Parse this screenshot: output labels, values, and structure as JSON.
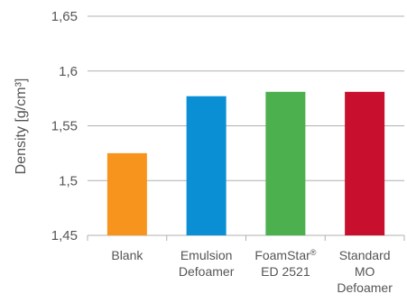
{
  "chart_data": {
    "type": "bar",
    "title": "",
    "xlabel": "",
    "ylabel": "Density [g/cm³]",
    "ylim": [
      1.45,
      1.65
    ],
    "yticks": [
      1.45,
      1.5,
      1.55,
      1.6,
      1.65
    ],
    "ytick_labels": [
      "1,45",
      "1,5",
      "1,55",
      "1,6",
      "1,65"
    ],
    "grid": true,
    "categories": [
      [
        "Blank"
      ],
      [
        "Emulsion",
        "Defoamer"
      ],
      [
        "FoamStar®",
        "ED 2521"
      ],
      [
        "Standard",
        "MO",
        "Defoamer"
      ]
    ],
    "values": [
      1.525,
      1.577,
      1.581,
      1.581
    ],
    "colors": [
      "#f7941d",
      "#0a8fd4",
      "#4cb04f",
      "#c8102e"
    ],
    "grid_color": "#b0b0b0"
  }
}
